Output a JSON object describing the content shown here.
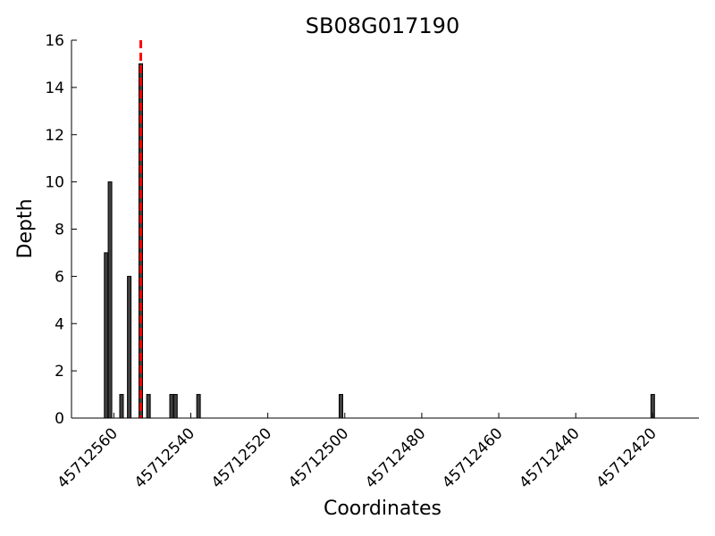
{
  "chart_data": {
    "type": "bar",
    "title": "SB08G017190",
    "xlabel": "Coordinates",
    "ylabel": "Depth",
    "x_axis_reversed": true,
    "xlim": [
      45712571,
      45712408
    ],
    "ylim": [
      0,
      16
    ],
    "x_ticks": [
      45712560,
      45712540,
      45712520,
      45712500,
      45712480,
      45712460,
      45712440,
      45712420
    ],
    "y_ticks": [
      0,
      2,
      4,
      6,
      8,
      10,
      12,
      14,
      16
    ],
    "grid": false,
    "bar_color": "#404040",
    "marker": {
      "x": 45712553,
      "color": "#ff0000",
      "style": "dashed"
    },
    "x": [
      45712562,
      45712561,
      45712558,
      45712556,
      45712553,
      45712551,
      45712545,
      45712544,
      45712538,
      45712501,
      45712420
    ],
    "values": [
      7,
      10,
      1,
      6,
      15,
      1,
      1,
      1,
      1,
      1,
      1
    ]
  }
}
